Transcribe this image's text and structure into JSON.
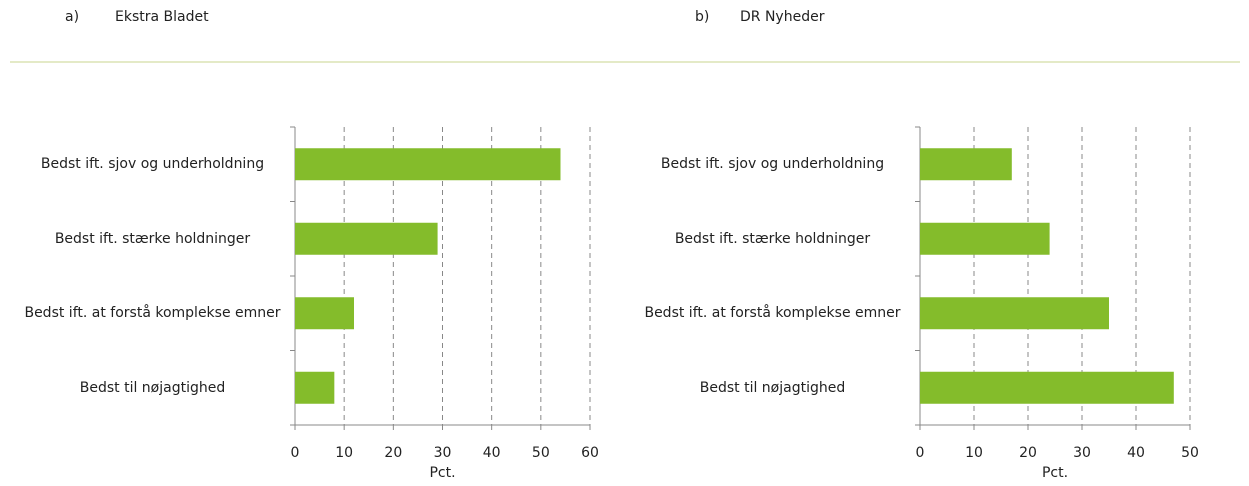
{
  "chart_data": [
    {
      "type": "bar",
      "label": "a)",
      "title": "Ekstra Bladet",
      "x_label": "Pct.",
      "categories": [
        "Bedst ift. sjov og underholdning",
        "Bedst ift. stærke holdninger",
        "Bedst ift. at forstå komplekse emner",
        "Bedst til nøjagtighed"
      ],
      "values": [
        54,
        29,
        12,
        8
      ],
      "color": "#84bc2b",
      "xlim": [
        0,
        60
      ],
      "xticks": [
        0,
        10,
        20,
        30,
        40,
        50,
        60
      ],
      "grid": true
    },
    {
      "type": "bar",
      "label": "b)",
      "title": "DR Nyheder",
      "x_label": "Pct.",
      "categories": [
        "Bedst ift. sjov og underholdning",
        "Bedst ift. stærke holdninger",
        "Bedst ift. at forstå komplekse emner",
        "Bedst til nøjagtighed"
      ],
      "values": [
        17,
        24,
        35,
        47
      ],
      "color": "#84bc2b",
      "xlim": [
        0,
        50
      ],
      "xticks": [
        0,
        10,
        20,
        30,
        40,
        50
      ],
      "grid": true
    }
  ]
}
